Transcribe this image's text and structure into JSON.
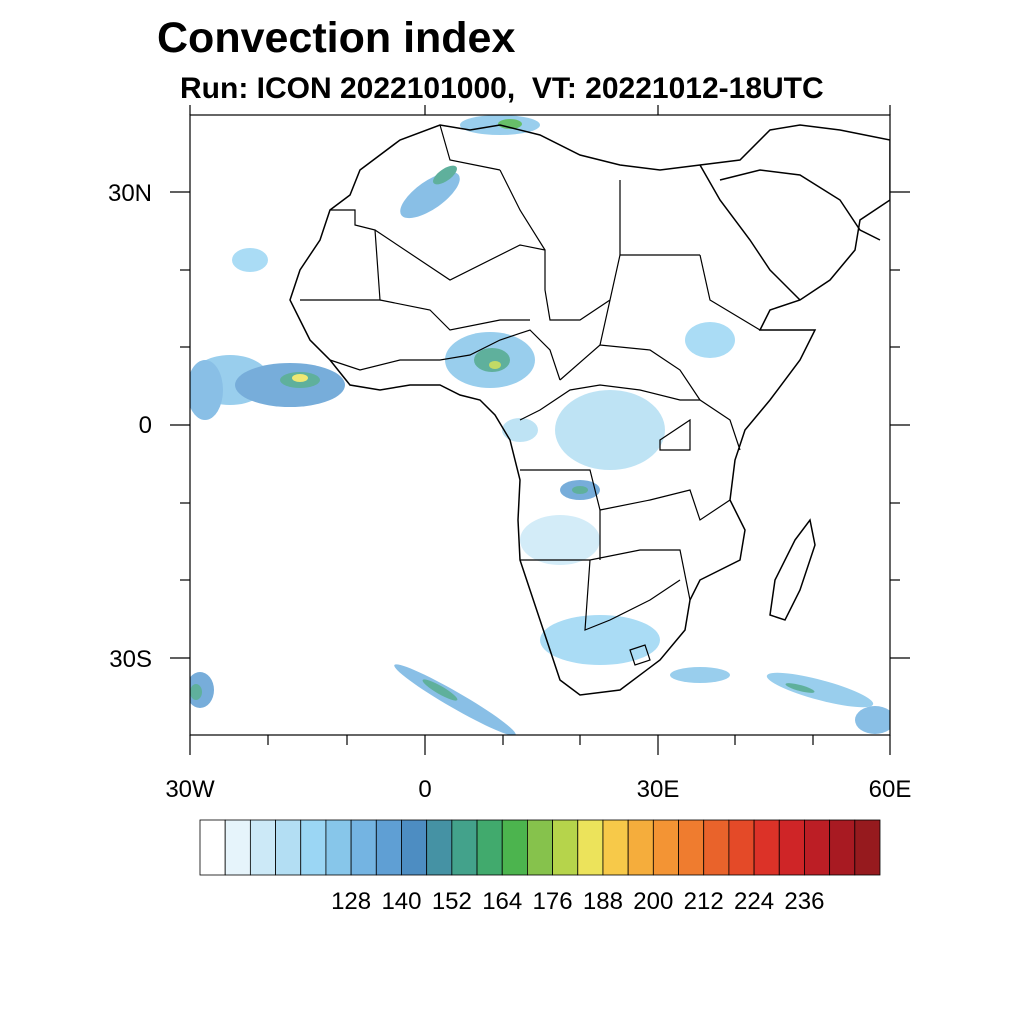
{
  "title": "Convection index",
  "subtitle": "Run: ICON 2022101000,  VT: 20221012-18UTC",
  "map": {
    "lat_labels": [
      "30N",
      "0",
      "30S"
    ],
    "lon_labels": [
      "30W",
      "0",
      "30E",
      "60E"
    ]
  },
  "colorbar": {
    "labels": [
      "128",
      "140",
      "152",
      "164",
      "176",
      "188",
      "200",
      "212",
      "224",
      "236"
    ],
    "colors": [
      "#ffffff",
      "#e6f4fb",
      "#cce9f7",
      "#b3def3",
      "#9bd6f4",
      "#87c6ea",
      "#74b4e2",
      "#5f9fd4",
      "#4d8dc2",
      "#4592a4",
      "#43a28b",
      "#41aa6d",
      "#4cb44e",
      "#86c24c",
      "#b6d44b",
      "#ece35b",
      "#f7c949",
      "#f5ad3c",
      "#f39434",
      "#ef7c2f",
      "#e9632b",
      "#e44a28",
      "#dc3228",
      "#cf2527",
      "#bc1e25",
      "#a81a22",
      "#961a1e"
    ]
  },
  "ocean_color": "#ffffff",
  "land_outline_color": "#000000"
}
